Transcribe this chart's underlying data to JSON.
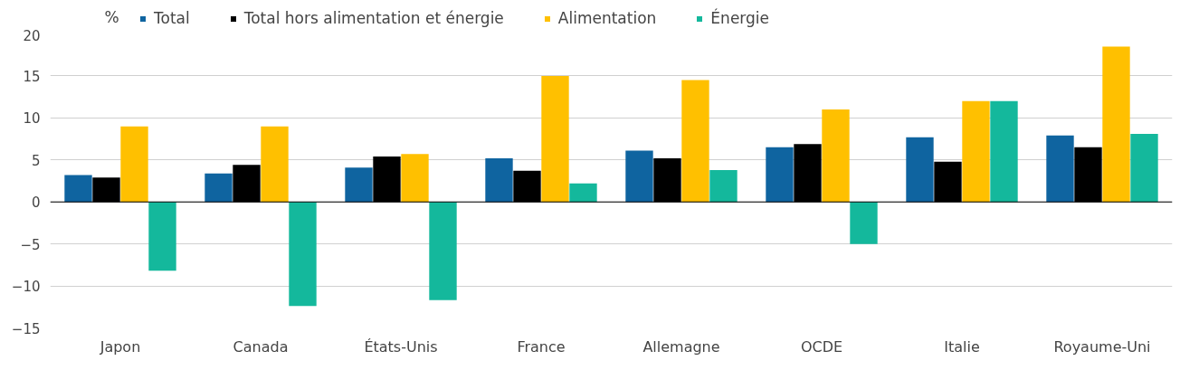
{
  "chart_data": {
    "type": "bar",
    "ylabel": "%",
    "categories": [
      "Japon",
      "Canada",
      "États-Unis",
      "France",
      "Allemagne",
      "OCDE",
      "Italie",
      "Royaume-Uni"
    ],
    "series": [
      {
        "name": "Total",
        "color": "#0f64a0",
        "values": [
          3.2,
          3.4,
          4.1,
          5.2,
          6.1,
          6.5,
          7.7,
          7.9
        ]
      },
      {
        "name": "Total hors alimentation et énergie",
        "color": "#000000",
        "values": [
          2.9,
          4.4,
          5.4,
          3.7,
          5.2,
          6.9,
          4.8,
          6.5
        ]
      },
      {
        "name": "Alimentation",
        "color": "#ffc000",
        "values": [
          9.0,
          9.0,
          5.7,
          15.0,
          14.5,
          11.0,
          12.0,
          18.5
        ]
      },
      {
        "name": "Énergie",
        "color": "#14b89c",
        "values": [
          -8.2,
          -12.4,
          -11.7,
          2.2,
          3.8,
          -5.0,
          12.0,
          8.1
        ]
      }
    ],
    "ylim": [
      -15,
      20
    ],
    "yticks": [
      -15,
      -10,
      -5,
      0,
      5,
      10,
      15,
      20
    ],
    "grid": "y",
    "legend": "top"
  }
}
